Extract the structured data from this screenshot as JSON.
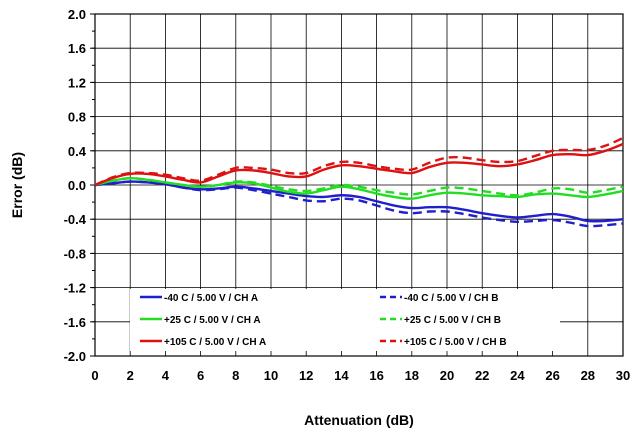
{
  "chart_data": {
    "type": "line",
    "xlabel": "Attenuation (dB)",
    "ylabel": "Error (dB)",
    "xlim": [
      0,
      30
    ],
    "ylim": [
      -2.0,
      2.0
    ],
    "x_ticks": [
      "0",
      "2",
      "4",
      "6",
      "8",
      "10",
      "12",
      "14",
      "16",
      "18",
      "20",
      "22",
      "24",
      "26",
      "28",
      "30"
    ],
    "y_ticks": [
      "2.0",
      "1.6",
      "1.2",
      "0.8",
      "0.4",
      "0.0",
      "-0.4",
      "-0.8",
      "-1.2",
      "-1.6",
      "-2.0"
    ],
    "grid": true,
    "legend_position": "bottom-center",
    "x": [
      0,
      1,
      2,
      3,
      4,
      5,
      6,
      7,
      8,
      9,
      10,
      11,
      12,
      13,
      14,
      15,
      16,
      17,
      18,
      19,
      20,
      21,
      22,
      23,
      24,
      25,
      26,
      27,
      28,
      29,
      30
    ],
    "series": [
      {
        "name": "-40 C  / 5.00 V / CH A",
        "color": "#1f1fcc",
        "dash": "solid",
        "values": [
          0,
          0.02,
          0.04,
          0.03,
          0.01,
          -0.03,
          -0.05,
          -0.04,
          -0.02,
          -0.04,
          -0.07,
          -0.1,
          -0.13,
          -0.14,
          -0.12,
          -0.14,
          -0.19,
          -0.24,
          -0.27,
          -0.26,
          -0.26,
          -0.29,
          -0.33,
          -0.36,
          -0.38,
          -0.36,
          -0.34,
          -0.37,
          -0.42,
          -0.42,
          -0.4
        ]
      },
      {
        "name": "-40 C  / 5.00 V / CH B",
        "color": "#1f1fcc",
        "dash": "dashed",
        "values": [
          0,
          0.02,
          0.04,
          0.03,
          0.01,
          -0.03,
          -0.06,
          -0.05,
          -0.03,
          -0.06,
          -0.1,
          -0.14,
          -0.18,
          -0.19,
          -0.16,
          -0.18,
          -0.24,
          -0.3,
          -0.33,
          -0.31,
          -0.31,
          -0.34,
          -0.38,
          -0.41,
          -0.43,
          -0.42,
          -0.41,
          -0.44,
          -0.48,
          -0.47,
          -0.45
        ]
      },
      {
        "name": "+25 C  / 5.00 V / CH A",
        "color": "#22dd22",
        "dash": "solid",
        "values": [
          0,
          0.05,
          0.08,
          0.06,
          0.03,
          0.0,
          -0.02,
          0.0,
          0.03,
          0.02,
          -0.03,
          -0.08,
          -0.1,
          -0.06,
          -0.02,
          -0.05,
          -0.1,
          -0.14,
          -0.16,
          -0.12,
          -0.09,
          -0.1,
          -0.12,
          -0.13,
          -0.14,
          -0.11,
          -0.1,
          -0.12,
          -0.14,
          -0.11,
          -0.07
        ]
      },
      {
        "name": "+25 C  / 5.00 V / CH B",
        "color": "#22dd22",
        "dash": "dashed",
        "values": [
          0,
          0.05,
          0.08,
          0.06,
          0.03,
          0.0,
          -0.02,
          0.0,
          0.04,
          0.03,
          -0.01,
          -0.05,
          -0.07,
          -0.04,
          0.0,
          -0.02,
          -0.06,
          -0.09,
          -0.11,
          -0.07,
          -0.03,
          -0.04,
          -0.07,
          -0.1,
          -0.12,
          -0.09,
          -0.04,
          -0.05,
          -0.09,
          -0.06,
          -0.02
        ]
      },
      {
        "name": "+105 C  / 5.00 V / CH A",
        "color": "#dd1111",
        "dash": "solid",
        "values": [
          0,
          0.08,
          0.13,
          0.13,
          0.1,
          0.06,
          0.03,
          0.1,
          0.17,
          0.17,
          0.14,
          0.1,
          0.1,
          0.18,
          0.23,
          0.22,
          0.19,
          0.16,
          0.14,
          0.21,
          0.26,
          0.26,
          0.24,
          0.22,
          0.24,
          0.29,
          0.35,
          0.36,
          0.35,
          0.4,
          0.48
        ]
      },
      {
        "name": "+105 C  / 5.00 V / CH B",
        "color": "#dd1111",
        "dash": "dashed",
        "values": [
          0,
          0.09,
          0.14,
          0.14,
          0.12,
          0.08,
          0.05,
          0.12,
          0.2,
          0.2,
          0.18,
          0.14,
          0.14,
          0.22,
          0.27,
          0.26,
          0.22,
          0.19,
          0.18,
          0.26,
          0.32,
          0.32,
          0.29,
          0.27,
          0.28,
          0.34,
          0.4,
          0.41,
          0.41,
          0.46,
          0.55
        ]
      }
    ]
  }
}
